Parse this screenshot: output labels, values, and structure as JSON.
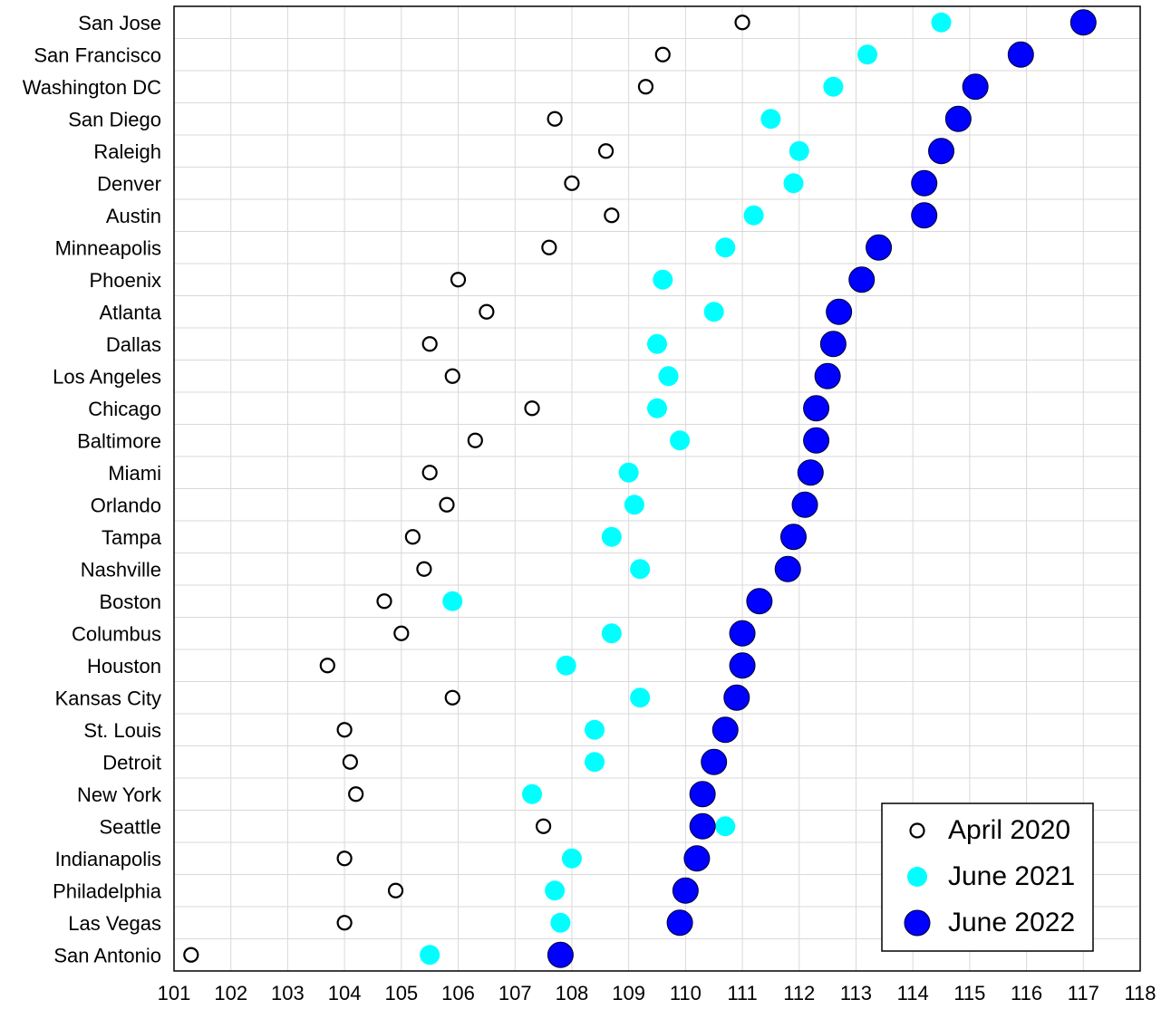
{
  "chart_data": {
    "type": "scatter",
    "categories": [
      "San Jose",
      "San Francisco",
      "Washington DC",
      "San Diego",
      "Raleigh",
      "Denver",
      "Austin",
      "Minneapolis",
      "Phoenix",
      "Atlanta",
      "Dallas",
      "Los Angeles",
      "Chicago",
      "Baltimore",
      "Miami",
      "Orlando",
      "Tampa",
      "Nashville",
      "Boston",
      "Columbus",
      "Houston",
      "Kansas City",
      "St. Louis",
      "Detroit",
      "New York",
      "Seattle",
      "Indianapolis",
      "Philadelphia",
      "Las Vegas",
      "San Antonio"
    ],
    "series": [
      {
        "name": "April 2020",
        "color": "#000000",
        "marker": "hollow-circle",
        "values": [
          111.0,
          109.6,
          109.3,
          107.7,
          108.6,
          108.0,
          108.7,
          107.6,
          106.0,
          106.5,
          105.5,
          105.9,
          107.3,
          106.3,
          105.5,
          105.8,
          105.2,
          105.4,
          104.7,
          105.0,
          103.7,
          105.9,
          104.0,
          104.1,
          104.2,
          107.5,
          104.0,
          104.9,
          104.0,
          101.3
        ]
      },
      {
        "name": "June 2021",
        "color": "#00ffff",
        "marker": "filled-circle",
        "values": [
          114.5,
          113.2,
          112.6,
          111.5,
          112.0,
          111.9,
          111.2,
          110.7,
          109.6,
          110.5,
          109.5,
          109.7,
          109.5,
          109.9,
          109.0,
          109.1,
          108.7,
          109.2,
          105.9,
          108.7,
          107.9,
          109.2,
          108.4,
          108.4,
          107.3,
          110.7,
          108.0,
          107.7,
          107.8,
          105.5
        ]
      },
      {
        "name": "June 2022",
        "color": "#0000ff",
        "marker": "filled-circle-large",
        "values": [
          117.0,
          115.9,
          115.1,
          114.8,
          114.5,
          114.2,
          114.2,
          113.4,
          113.1,
          112.7,
          112.6,
          112.5,
          112.3,
          112.3,
          112.2,
          112.1,
          111.9,
          111.8,
          111.3,
          111.0,
          111.0,
          110.9,
          110.7,
          110.5,
          110.3,
          110.3,
          110.2,
          110.0,
          109.9,
          107.8
        ]
      }
    ],
    "x_ticks": [
      101,
      102,
      103,
      104,
      105,
      106,
      107,
      108,
      109,
      110,
      111,
      112,
      113,
      114,
      115,
      116,
      117,
      118
    ],
    "xlim": [
      101,
      118
    ],
    "grid": true,
    "legend_position": "bottom-right"
  }
}
